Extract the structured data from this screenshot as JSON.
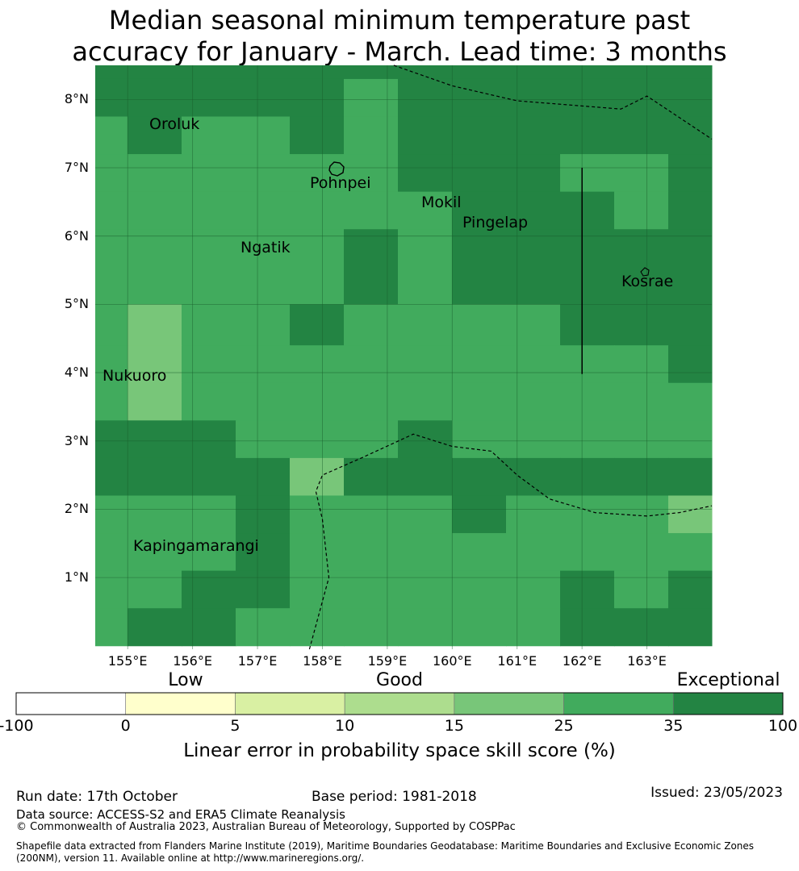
{
  "title_lines": [
    "Median seasonal minimum temperature past",
    "accuracy for January - March. Lead time: 3 months"
  ],
  "map": {
    "lon_range": [
      154.5,
      164.0
    ],
    "lat_range": [
      -0.05,
      8.5
    ],
    "lat_ticks": [
      {
        "value": 8,
        "label": "8°N"
      },
      {
        "value": 7,
        "label": "7°N"
      },
      {
        "value": 6,
        "label": "6°N"
      },
      {
        "value": 5,
        "label": "5°N"
      },
      {
        "value": 4,
        "label": "4°N"
      },
      {
        "value": 3,
        "label": "3°N"
      },
      {
        "value": 2,
        "label": "2°N"
      },
      {
        "value": 1,
        "label": "1°N"
      }
    ],
    "lon_ticks": [
      {
        "value": 155,
        "label": "155°E"
      },
      {
        "value": 156,
        "label": "156°E"
      },
      {
        "value": 157,
        "label": "157°E"
      },
      {
        "value": 158,
        "label": "158°E"
      },
      {
        "value": 159,
        "label": "159°E"
      },
      {
        "value": 160,
        "label": "160°E"
      },
      {
        "value": 161,
        "label": "161°E"
      },
      {
        "value": 162,
        "label": "162°E"
      },
      {
        "value": 163,
        "label": "163°E"
      }
    ],
    "grid_note_cols": [
      "154.5",
      "155.0",
      "155.8",
      "156.7",
      "157.5",
      "158.3",
      "159.2",
      "160.0",
      "160.8",
      "161.7",
      "162.5",
      "163.3",
      "164.0"
    ],
    "grid_rows_lat": [
      8.5,
      8.3,
      7.75,
      7.2,
      6.65,
      6.1,
      5.0,
      4.4,
      3.85,
      3.3,
      2.75,
      2.2,
      1.65,
      1.1,
      0.55,
      0.0
    ],
    "grid_levels": [
      [
        5,
        5,
        5,
        5,
        5,
        5,
        5,
        5,
        5,
        5,
        5,
        5
      ],
      [
        5,
        5,
        5,
        5,
        5,
        4,
        5,
        5,
        5,
        5,
        5,
        5
      ],
      [
        4,
        5,
        4,
        4,
        5,
        4,
        5,
        5,
        5,
        5,
        5,
        5
      ],
      [
        4,
        4,
        4,
        4,
        4,
        4,
        5,
        5,
        5,
        4,
        4,
        5
      ],
      [
        4,
        4,
        4,
        4,
        4,
        4,
        4,
        5,
        5,
        5,
        4,
        5
      ],
      [
        4,
        4,
        4,
        4,
        4,
        5,
        4,
        5,
        5,
        5,
        5,
        5
      ],
      [
        4,
        3,
        4,
        4,
        5,
        4,
        4,
        4,
        4,
        5,
        5,
        5
      ],
      [
        4,
        3,
        4,
        4,
        4,
        4,
        4,
        4,
        4,
        4,
        4,
        5
      ],
      [
        4,
        3,
        4,
        4,
        4,
        4,
        4,
        4,
        4,
        4,
        4,
        4
      ],
      [
        5,
        5,
        5,
        4,
        4,
        4,
        5,
        4,
        4,
        4,
        4,
        4
      ],
      [
        5,
        5,
        5,
        5,
        3,
        5,
        5,
        5,
        5,
        5,
        5,
        5
      ],
      [
        4,
        4,
        4,
        5,
        4,
        4,
        4,
        5,
        4,
        4,
        4,
        3
      ],
      [
        4,
        4,
        4,
        5,
        4,
        4,
        4,
        4,
        4,
        4,
        4,
        4
      ],
      [
        4,
        4,
        5,
        5,
        4,
        4,
        4,
        4,
        4,
        5,
        4,
        5
      ],
      [
        4,
        5,
        5,
        4,
        4,
        4,
        4,
        4,
        4,
        5,
        5,
        5
      ]
    ],
    "places": [
      {
        "name": "Oroluk",
        "lon": 155.7,
        "lat": 7.6,
        "label": "Oroluk"
      },
      {
        "name": "Pohnpei",
        "lon": 158.2,
        "lat": 6.9,
        "label": "Pohnpei"
      },
      {
        "name": "Mokil",
        "lon": 159.8,
        "lat": 6.7,
        "label": "Mokil"
      },
      {
        "name": "Pingelap",
        "lon": 160.7,
        "lat": 6.2,
        "label": "Pingelap"
      },
      {
        "name": "Ngatik",
        "lon": 157.3,
        "lat": 5.8,
        "label": "Ngatik"
      },
      {
        "name": "Kosrae",
        "lon": 163.0,
        "lat": 5.3,
        "label": "Kosrae"
      },
      {
        "name": "Nukuoro",
        "lon": 154.8,
        "lat": 3.85,
        "label": "Nukuoro"
      },
      {
        "name": "Kapingamarangi",
        "lon": 154.8,
        "lat": 1.2,
        "label": "Kapingamarangi"
      }
    ],
    "boundary_lines": [
      [
        [
          159.1,
          8.5
        ],
        [
          160.0,
          8.2
        ],
        [
          161.0,
          7.98
        ],
        [
          162.6,
          7.86
        ],
        [
          163.0,
          8.05
        ],
        [
          164.0,
          7.42
        ]
      ],
      [
        [
          157.8,
          -0.05
        ],
        [
          158.1,
          1.0
        ],
        [
          158.0,
          1.85
        ],
        [
          157.9,
          2.26
        ],
        [
          158.0,
          2.5
        ],
        [
          158.6,
          2.75
        ],
        [
          159.4,
          3.1
        ],
        [
          160.0,
          2.92
        ],
        [
          160.6,
          2.85
        ],
        [
          161.0,
          2.5
        ],
        [
          161.5,
          2.15
        ],
        [
          162.2,
          1.95
        ],
        [
          163.0,
          1.9
        ],
        [
          163.5,
          1.95
        ],
        [
          164.0,
          2.05
        ]
      ]
    ],
    "solid_lines": [
      [
        [
          162.0,
          7.0
        ],
        [
          162.0,
          3.98
        ]
      ]
    ]
  },
  "colorbar": {
    "categories": [
      {
        "label": "Low",
        "at": 0.221
      },
      {
        "label": "Good",
        "at": 0.5
      },
      {
        "label": "Exceptional",
        "at": 0.929
      }
    ],
    "ticks": [
      "-100",
      "0",
      "5",
      "10",
      "15",
      "25",
      "35",
      "100"
    ],
    "colors": [
      "#ffffff",
      "#ffffcc",
      "#d9f0a3",
      "#addd8e",
      "#78c679",
      "#41ab5d",
      "#238443"
    ],
    "label": "Linear error in probability space skill score (%)"
  },
  "footer": {
    "run_date": "Run date: 17th October",
    "base_period": "Base period: 1981-2018",
    "issued": "Issued: 23/05/2023",
    "data_source": "Data source: ACCESS-S2 and ERA5 Climate Reanalysis",
    "copyright": "© Commonwealth of Australia 2023, Australian Bureau of Meteorology, Supported by COSPPac",
    "shapefile_1": "Shapefile data extracted from Flanders Marine Institute (2019), Maritime Boundaries Geodatabase: Maritime Boundaries and Exclusive Economic Zones",
    "shapefile_2": "(200NM), version 11. Available online at http://www.marineregions.org/."
  }
}
